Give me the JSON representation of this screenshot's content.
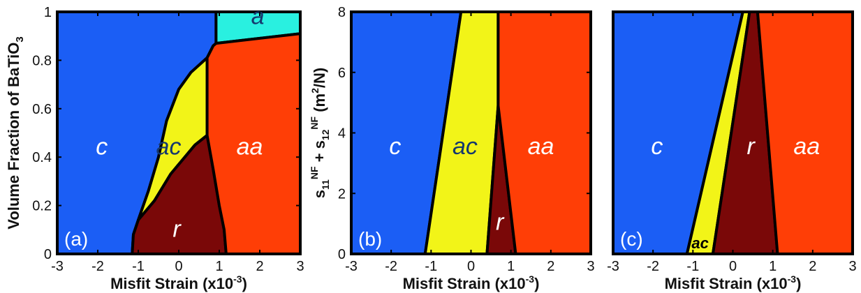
{
  "colors": {
    "c": "#1b5ef5",
    "a": "#29f0e0",
    "ac": "#f2f418",
    "aa": "#ff3e06",
    "r": "#7a0808",
    "outline": "#000000",
    "white_label": "#ffffff",
    "dark_label": "#15386e"
  },
  "chart_data": [
    {
      "type": "area",
      "panel_tag": "(a)",
      "xlabel": "Misfit Strain (x10",
      "xlabel_exp": "-3",
      "xlabel_end": ")",
      "ylabel": "Volume Fraction of BaTiO",
      "ylabel_sub": "3",
      "xlim": [
        -3,
        3
      ],
      "ylim": [
        0,
        1
      ],
      "xticks": [
        -3,
        -2,
        -1,
        0,
        1,
        2,
        3
      ],
      "yticks": [
        0,
        0.2,
        0.4,
        0.6,
        0.8,
        1
      ],
      "ytick_labels": [
        "0",
        "0.2",
        "0.4",
        "0.6",
        "0.8",
        "1"
      ],
      "regions": [
        {
          "name": "c",
          "label": "c",
          "label_at": [
            -1.9,
            0.41
          ],
          "label_color": "white",
          "points": [
            [
              -3,
              0
            ],
            [
              -1.15,
              0
            ],
            [
              -1.12,
              0.08
            ],
            [
              -1.0,
              0.14
            ],
            [
              -0.75,
              0.26
            ],
            [
              -0.5,
              0.4
            ],
            [
              -0.3,
              0.55
            ],
            [
              0,
              0.68
            ],
            [
              0.3,
              0.75
            ],
            [
              0.7,
              0.81
            ],
            [
              0.85,
              0.86
            ],
            [
              0.92,
              0.87
            ],
            [
              0.92,
              1
            ],
            [
              -3,
              1
            ]
          ]
        },
        {
          "name": "a",
          "label": "a",
          "label_at": [
            1.95,
            0.95
          ],
          "label_color": "dark",
          "points": [
            [
              0.92,
              1
            ],
            [
              3,
              1
            ],
            [
              3,
              0.91
            ],
            [
              0.92,
              0.87
            ]
          ]
        },
        {
          "name": "ac",
          "label": "ac",
          "label_at": [
            -0.25,
            0.41
          ],
          "label_color": "dark",
          "points": [
            [
              -1.0,
              0.14
            ],
            [
              -0.75,
              0.26
            ],
            [
              -0.5,
              0.4
            ],
            [
              -0.3,
              0.55
            ],
            [
              0,
              0.68
            ],
            [
              0.3,
              0.75
            ],
            [
              0.7,
              0.81
            ],
            [
              0.7,
              0.49
            ],
            [
              0.4,
              0.45
            ],
            [
              -0.2,
              0.33
            ],
            [
              -0.6,
              0.22
            ],
            [
              -0.95,
              0.15
            ]
          ]
        },
        {
          "name": "r",
          "label": "r",
          "label_at": [
            -0.05,
            0.07
          ],
          "label_color": "white",
          "points": [
            [
              -1.15,
              0
            ],
            [
              -1.12,
              0.08
            ],
            [
              -1.0,
              0.14
            ],
            [
              -0.95,
              0.15
            ],
            [
              -0.6,
              0.22
            ],
            [
              -0.2,
              0.33
            ],
            [
              0.4,
              0.45
            ],
            [
              0.7,
              0.49
            ],
            [
              0.85,
              0.35
            ],
            [
              1.0,
              0.2
            ],
            [
              1.12,
              0.1
            ],
            [
              1.17,
              0
            ]
          ]
        },
        {
          "name": "aa",
          "label": "aa",
          "label_at": [
            1.75,
            0.41
          ],
          "label_color": "white",
          "points": [
            [
              0.7,
              0.49
            ],
            [
              0.7,
              0.81
            ],
            [
              0.85,
              0.86
            ],
            [
              0.92,
              0.87
            ],
            [
              3,
              0.91
            ],
            [
              3,
              0
            ],
            [
              1.17,
              0
            ],
            [
              1.12,
              0.1
            ],
            [
              1.0,
              0.2
            ],
            [
              0.85,
              0.35
            ]
          ]
        }
      ]
    },
    {
      "type": "area",
      "panel_tag": "(b)",
      "xlabel": "Misfit Strain (x10",
      "xlabel_exp": "-3",
      "xlabel_end": ")",
      "ylabel_parts": [
        "s",
        "11",
        "NF",
        " + s",
        "12",
        "NF",
        " (m",
        "2",
        "/N)"
      ],
      "xlim": [
        -3,
        3
      ],
      "ylim": [
        0,
        8
      ],
      "xticks": [
        -3,
        -2,
        -1,
        0,
        1,
        2,
        3
      ],
      "yticks": [
        0,
        2,
        4,
        6,
        8
      ],
      "ytick_labels": [
        "0",
        "2",
        "4",
        "6",
        "8"
      ],
      "regions": [
        {
          "name": "c",
          "label": "c",
          "label_at": [
            -1.9,
            3.3
          ],
          "label_color": "white",
          "points": [
            [
              -3,
              0
            ],
            [
              -1.15,
              0
            ],
            [
              -0.25,
              8
            ],
            [
              -3,
              8
            ]
          ]
        },
        {
          "name": "ac",
          "label": "ac",
          "label_at": [
            -0.15,
            3.3
          ],
          "label_color": "dark",
          "points": [
            [
              -1.15,
              0
            ],
            [
              0.4,
              0
            ],
            [
              0.68,
              4.9
            ],
            [
              0.68,
              8
            ],
            [
              -0.25,
              8
            ]
          ]
        },
        {
          "name": "r",
          "label": "r",
          "label_at": [
            0.72,
            0.8
          ],
          "label_color": "white",
          "points": [
            [
              0.4,
              0
            ],
            [
              1.12,
              0
            ],
            [
              0.68,
              4.9
            ]
          ]
        },
        {
          "name": "aa",
          "label": "aa",
          "label_at": [
            1.75,
            3.3
          ],
          "label_color": "white",
          "points": [
            [
              0.68,
              8
            ],
            [
              3,
              8
            ],
            [
              3,
              0
            ],
            [
              1.12,
              0
            ],
            [
              0.68,
              4.9
            ]
          ]
        }
      ]
    },
    {
      "type": "area",
      "panel_tag": "(c)",
      "xlabel": "Misfit Strain (x10",
      "xlabel_exp": "-3",
      "xlabel_end": ")",
      "xlim": [
        -3,
        3
      ],
      "ylim": [
        0,
        8
      ],
      "xticks": [
        -3,
        -2,
        -1,
        0,
        1,
        2,
        3
      ],
      "regions": [
        {
          "name": "c",
          "label": "c",
          "label_at": [
            -1.9,
            3.3
          ],
          "label_color": "white",
          "points": [
            [
              -3,
              0
            ],
            [
              -1.15,
              0
            ],
            [
              0.25,
              8
            ],
            [
              -3,
              8
            ]
          ]
        },
        {
          "name": "ac",
          "label": "ac",
          "label_at": [
            -0.82,
            0.18
          ],
          "label_color": "black",
          "small": true,
          "points": [
            [
              -1.15,
              0
            ],
            [
              -0.5,
              0
            ],
            [
              0.42,
              8
            ],
            [
              0.25,
              8
            ]
          ]
        },
        {
          "name": "r",
          "label": "r",
          "label_at": [
            0.45,
            3.3
          ],
          "label_color": "white",
          "points": [
            [
              -0.5,
              0
            ],
            [
              1.12,
              0
            ],
            [
              0.62,
              8
            ],
            [
              0.42,
              8
            ]
          ]
        },
        {
          "name": "aa",
          "label": "aa",
          "label_at": [
            1.85,
            3.3
          ],
          "label_color": "white",
          "points": [
            [
              0.62,
              8
            ],
            [
              3,
              8
            ],
            [
              3,
              0
            ],
            [
              1.12,
              0
            ]
          ]
        }
      ]
    }
  ]
}
